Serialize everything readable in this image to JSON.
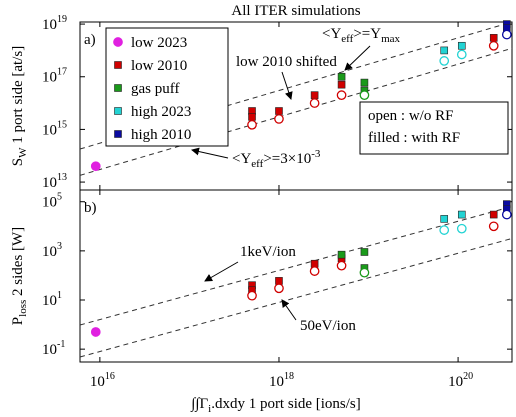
{
  "chart_data": [
    {
      "type": "scatter",
      "title": "All ITER simulations",
      "panel_label": "a)",
      "xlog": true,
      "ylog": true,
      "xlim": [
        6000000000000000.0,
        4e+20
      ],
      "ylim": [
        5000000000000.0,
        1.2e+19
      ],
      "xticks": [
        1e+16,
        1e+18,
        1e+20
      ],
      "yticks": [
        {
          "value": 10000000000000.0,
          "label": "10",
          "exp": "13"
        },
        {
          "value": 1000000000000000.0,
          "label": "10",
          "exp": "15"
        },
        {
          "value": 1e+17,
          "label": "10",
          "exp": "17"
        },
        {
          "value": 1e+19,
          "label": "10",
          "exp": "19"
        }
      ],
      "ylabel": [
        {
          "text": "S"
        },
        {
          "text": "W",
          "sub": true
        },
        {
          "text": " 1 port side [at/s]"
        }
      ],
      "legend": "upper left",
      "series": [
        {
          "name": "low 2023",
          "color": "#e020e0",
          "marker": "circle",
          "x": [
            9000000000000000.0
          ],
          "values": [
            40000000000000.0
          ],
          "filled": [
            true
          ]
        },
        {
          "name": "low 2010",
          "color": "#d00000",
          "marker": "square",
          "x": [
            5e+17,
            5e+17,
            5e+17,
            1e+18,
            1e+18,
            2.5e+18,
            2.5e+18,
            5e+18,
            5e+18,
            2.5e+20,
            2.5e+20
          ],
          "values": [
            5000000000000000.0,
            3000000000000000.0,
            1500000000000000.0,
            5000000000000000.0,
            2500000000000000.0,
            2e+16,
            1e+16,
            5e+16,
            2e+16,
            3e+18,
            1.5e+18
          ],
          "filled": [
            true,
            true,
            false,
            true,
            false,
            true,
            false,
            true,
            false,
            true,
            false
          ]
        },
        {
          "name": "gas puff",
          "color": "#1a9a1a",
          "marker": "square",
          "x": [
            5e+18,
            9e+18,
            9e+18,
            9e+18
          ],
          "values": [
            1e+17,
            6e+16,
            3e+16,
            2e+16
          ],
          "filled": [
            true,
            true,
            true,
            false
          ]
        },
        {
          "name": "high 2023",
          "color": "#22d3d3",
          "marker": "square",
          "x": [
            7e+19,
            1.1e+20,
            7e+19,
            1.1e+20
          ],
          "values": [
            1e+18,
            1.5e+18,
            4e+17,
            7e+17
          ],
          "filled": [
            true,
            true,
            false,
            false
          ]
        },
        {
          "name": "high 2010",
          "color": "#0a0aa0",
          "marker": "square",
          "x": [
            3.5e+20,
            3.5e+20,
            3.5e+20
          ],
          "values": [
            1e+19,
            7e+18,
            4e+18
          ],
          "filled": [
            true,
            true,
            false
          ]
        }
      ],
      "reference_lines": [
        {
          "x": [
            6000000000000000.0,
            4e+20
          ],
          "values": [
            180000000000000.0,
            1.2e+19
          ]
        },
        {
          "x": [
            6000000000000000.0,
            4e+20
          ],
          "values": [
            18000000000000.0,
            1.2e+18
          ]
        }
      ],
      "annotations": [
        {
          "parts": [
            {
              "text": "<Y"
            },
            {
              "text": "eff",
              "sub": true
            },
            {
              "text": ">=Y"
            },
            {
              "text": "max",
              "sub": true
            }
          ]
        },
        {
          "parts": [
            {
              "text": "low 2010 shifted"
            }
          ]
        },
        {
          "parts": [
            {
              "text": "<Y"
            },
            {
              "text": "eff",
              "sub": true
            },
            {
              "text": ">=3×10"
            },
            {
              "text": "-3",
              "sup": true
            }
          ]
        },
        {
          "parts": [
            {
              "text": "open : w/o RF"
            }
          ]
        },
        {
          "parts": [
            {
              "text": "filled : with RF"
            }
          ]
        }
      ]
    },
    {
      "type": "scatter",
      "panel_label": "b)",
      "xlog": true,
      "ylog": true,
      "xlim": [
        6000000000000000.0,
        4e+20
      ],
      "ylim": [
        0.03,
        300000.0
      ],
      "xticks": [
        {
          "value": 1e+16,
          "label": "10",
          "exp": "16"
        },
        {
          "value": 1e+18,
          "label": "10",
          "exp": "18"
        },
        {
          "value": 1e+20,
          "label": "10",
          "exp": "20"
        }
      ],
      "yticks": [
        {
          "value": 0.1,
          "label": "10",
          "exp": "-1"
        },
        {
          "value": 10,
          "label": "10",
          "exp": "1"
        },
        {
          "value": 1000,
          "label": "10",
          "exp": "3"
        },
        {
          "value": 100000,
          "label": "10",
          "exp": "5"
        }
      ],
      "ylabel": [
        {
          "text": "P"
        },
        {
          "text": "loss",
          "sub": true
        },
        {
          "text": " 2 sides [W]"
        }
      ],
      "xlabel": [
        {
          "text": "∫∫Γ"
        },
        {
          "text": "i",
          "sub": true
        },
        {
          "text": ".dxdy 1 port side [ions/s]"
        }
      ],
      "series": [
        {
          "color": "#e020e0",
          "marker": "circle",
          "x": [
            9000000000000000.0
          ],
          "values": [
            0.5
          ],
          "filled": [
            true
          ]
        },
        {
          "color": "#d00000",
          "marker": "square",
          "x": [
            5e+17,
            5e+17,
            5e+17,
            1e+18,
            1e+18,
            2.5e+18,
            2.5e+18,
            5e+18,
            5e+18,
            2.5e+20,
            2.5e+20
          ],
          "values": [
            40,
            25,
            15,
            60,
            30,
            300,
            150,
            500,
            250,
            30000,
            10000
          ],
          "filled": [
            true,
            true,
            false,
            true,
            false,
            true,
            false,
            true,
            false,
            true,
            false
          ]
        },
        {
          "color": "#1a9a1a",
          "marker": "square",
          "x": [
            5e+18,
            9e+18,
            9e+18,
            9e+18
          ],
          "values": [
            700,
            900,
            200,
            130
          ],
          "filled": [
            true,
            true,
            true,
            false
          ]
        },
        {
          "color": "#22d3d3",
          "marker": "square",
          "x": [
            7e+19,
            1.1e+20,
            7e+19,
            1.1e+20
          ],
          "values": [
            20000,
            30000,
            7000,
            8000
          ],
          "filled": [
            true,
            true,
            false,
            false
          ]
        },
        {
          "color": "#0a0aa0",
          "marker": "square",
          "x": [
            3.5e+20,
            3.5e+20,
            3.5e+20
          ],
          "values": [
            80000,
            50000,
            30000
          ],
          "filled": [
            true,
            true,
            false
          ]
        }
      ],
      "reference_lines": [
        {
          "x": [
            6000000000000000.0,
            4e+20
          ],
          "values": [
            0.96,
            64000
          ]
        },
        {
          "x": [
            6000000000000000.0,
            4e+20
          ],
          "values": [
            0.048,
            3200
          ]
        }
      ],
      "annotations": [
        {
          "parts": [
            {
              "text": "1keV/ion"
            }
          ]
        },
        {
          "parts": [
            {
              "text": "50eV/ion"
            }
          ]
        }
      ]
    }
  ]
}
